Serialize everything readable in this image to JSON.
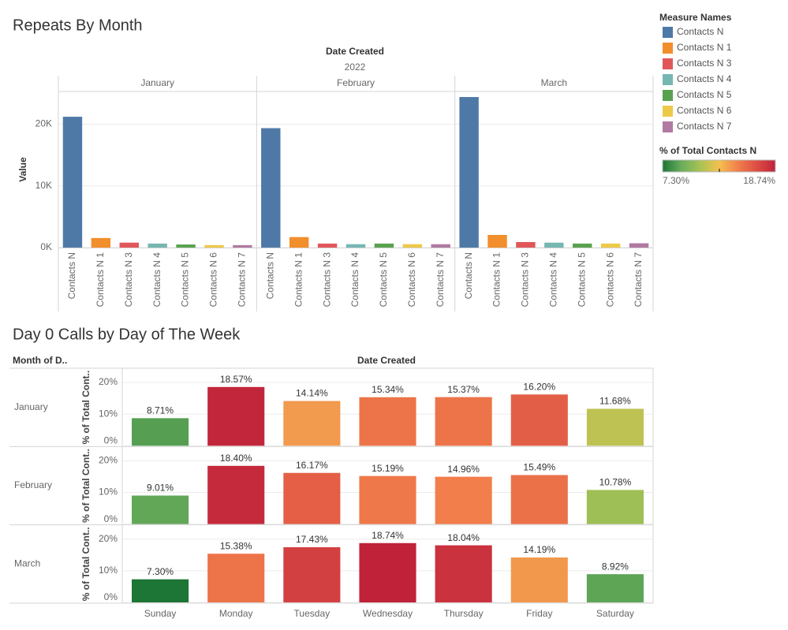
{
  "chart_data": [
    {
      "type": "bar",
      "title": "Repeats By Month",
      "column_header": "Date Created",
      "year": "2022",
      "categories": [
        "Contacts N",
        "Contacts N 1",
        "Contacts N 3",
        "Contacts N 4",
        "Contacts N 5",
        "Contacts N 6",
        "Contacts N 7"
      ],
      "colors": [
        "#4e79a7",
        "#f28e2b",
        "#e15759",
        "#76b7b2",
        "#59a14f",
        "#edc948",
        "#b07aa1"
      ],
      "panels": [
        {
          "name": "January",
          "values": [
            21200,
            1550,
            800,
            650,
            500,
            400,
            400
          ]
        },
        {
          "name": "February",
          "values": [
            19350,
            1700,
            650,
            550,
            650,
            550,
            550
          ]
        },
        {
          "name": "March",
          "values": [
            24400,
            2050,
            900,
            800,
            650,
            650,
            700
          ]
        }
      ],
      "y_label": "Value",
      "ylim": [
        0,
        25300
      ],
      "yticks": [
        {
          "value": 0,
          "label": "0K"
        },
        {
          "value": 10000,
          "label": "10K"
        },
        {
          "value": 20000,
          "label": "20K"
        }
      ],
      "grid": true,
      "legend_title": "Measure Names",
      "legend": "right"
    },
    {
      "type": "bar",
      "title": "Day 0 Calls by Day of The Week",
      "row_header": "Month of D..",
      "column_header": "Date Created",
      "categories": [
        "Sunday",
        "Monday",
        "Tuesday",
        "Wednesday",
        "Thursday",
        "Friday",
        "Saturday"
      ],
      "rows": [
        {
          "name": "January",
          "values": [
            8.71,
            18.57,
            14.14,
            15.34,
            15.37,
            16.2,
            11.68
          ],
          "value_labels": [
            "8.71%",
            "18.57%",
            "14.14%",
            "15.34%",
            "15.37%",
            "16.20%",
            "11.68%"
          ]
        },
        {
          "name": "February",
          "values": [
            9.01,
            18.4,
            16.17,
            15.19,
            14.96,
            15.49,
            10.78
          ],
          "value_labels": [
            "9.01%",
            "18.40%",
            "16.17%",
            "15.19%",
            "14.96%",
            "15.49%",
            "10.78%"
          ]
        },
        {
          "name": "March",
          "values": [
            7.3,
            15.38,
            17.43,
            18.74,
            18.04,
            14.19,
            8.92
          ],
          "value_labels": [
            "7.30%",
            "15.38%",
            "17.43%",
            "18.74%",
            "18.04%",
            "14.19%",
            "8.92%"
          ]
        }
      ],
      "y_label": "% of Total Cont..",
      "ylim": [
        0,
        24
      ],
      "yticks": [
        {
          "value": 0,
          "label": "0%"
        },
        {
          "value": 10,
          "label": "10%"
        },
        {
          "value": 20,
          "label": "20%"
        }
      ],
      "color_legend": {
        "title": "% of Total Contacts N",
        "min": {
          "value": 7.3,
          "label": "7.30%"
        },
        "max": {
          "value": 18.74,
          "label": "18.74%"
        },
        "colors": [
          "#1d7536",
          "#6aad5c",
          "#a8c354",
          "#f3c14f",
          "#f27f4b",
          "#dc4e44",
          "#c0223a"
        ]
      }
    }
  ]
}
